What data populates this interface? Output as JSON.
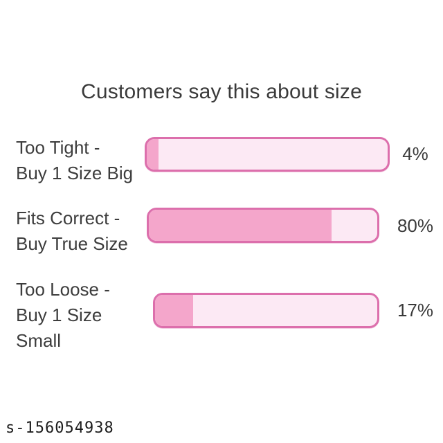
{
  "title": "Customers say this about size",
  "watermark": "s-156054938",
  "rows": [
    {
      "label_lines": [
        "Too Tight -",
        "Buy 1 Size Big"
      ],
      "value": 4,
      "pct_label": "4%"
    },
    {
      "label_lines": [
        "Fits Correct -",
        "Buy True Size"
      ],
      "value": 80,
      "pct_label": "80%"
    },
    {
      "label_lines": [
        "Too Loose -",
        "Buy 1 Size",
        "Small"
      ],
      "value": 17,
      "pct_label": "17%"
    }
  ],
  "colors": {
    "bar_border": "#DC6FAC",
    "bar_fill": "#F4A6CB",
    "bar_track": "#FCE9F4",
    "text": "#3A3A3A"
  },
  "chart_data": {
    "type": "bar",
    "orientation": "horizontal",
    "title": "Customers say this about size",
    "categories": [
      "Too Tight - Buy 1 Size Big",
      "Fits Correct - Buy True Size",
      "Too Loose - Buy 1 Size Small"
    ],
    "values": [
      4,
      80,
      17
    ],
    "value_labels": [
      "4%",
      "80%",
      "17%"
    ],
    "unit": "%",
    "xlim": [
      0,
      100
    ],
    "grid": false,
    "legend": false,
    "value_label_position": "right-of-bar"
  }
}
